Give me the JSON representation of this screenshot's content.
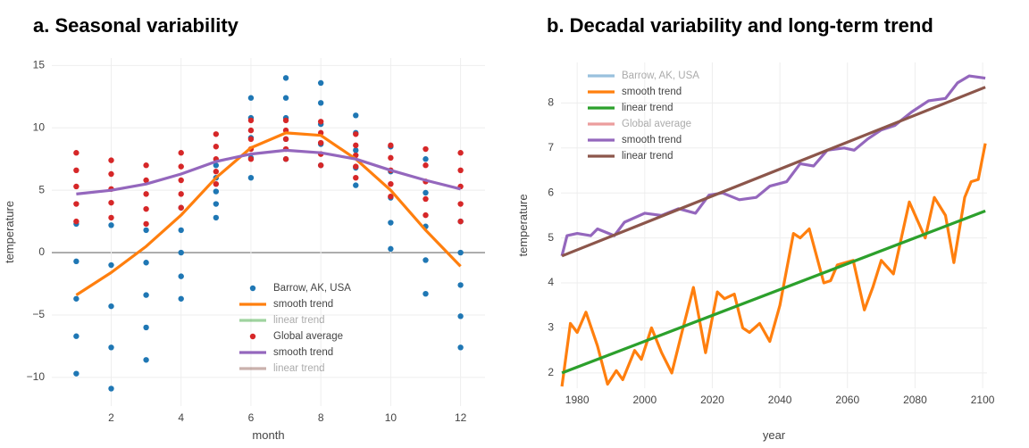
{
  "chart_data": [
    {
      "type": "scatter",
      "title": "a.  Seasonal variability",
      "x_label": "month",
      "y_label": "temperature",
      "xlim": [
        0.3,
        12.7
      ],
      "ylim": [
        -12.3,
        15.6
      ],
      "xticks": [
        2,
        4,
        6,
        8,
        10,
        12
      ],
      "yticks": [
        {
          "value": -10,
          "label": "−10"
        },
        {
          "value": -5,
          "label": "−5"
        },
        0,
        5,
        10,
        15
      ],
      "grid": true,
      "legend": "lower right",
      "series": [
        {
          "name": "Barrow, AK, USA",
          "color": "#1f77b4",
          "mode": "markers",
          "x": [
            1,
            1,
            1,
            1,
            1,
            2,
            2,
            2,
            2,
            2,
            3,
            3,
            3,
            3,
            3,
            4,
            4,
            4,
            4,
            4,
            5,
            5,
            5,
            5,
            5,
            6,
            6,
            6,
            6,
            6,
            7,
            7,
            7,
            7,
            7,
            8,
            8,
            8,
            8,
            8,
            9,
            9,
            9,
            9,
            9,
            10,
            10,
            10,
            10,
            10,
            11,
            11,
            11,
            11,
            11,
            12,
            12,
            12,
            12,
            12
          ],
          "values": [
            -9.7,
            -6.7,
            -3.7,
            -0.7,
            2.3,
            -10.9,
            -7.6,
            -4.3,
            -1.0,
            2.2,
            -8.6,
            -6.0,
            -3.4,
            -0.8,
            1.8,
            -3.7,
            -1.9,
            0.0,
            1.8,
            3.6,
            2.8,
            3.9,
            4.9,
            6.0,
            7.0,
            6.0,
            7.6,
            9.2,
            10.8,
            12.4,
            7.5,
            9.1,
            10.8,
            12.4,
            14.0,
            7.0,
            8.7,
            10.3,
            12.0,
            13.6,
            5.4,
            6.8,
            8.2,
            9.6,
            11.0,
            0.3,
            2.4,
            4.4,
            6.5,
            8.5,
            -3.3,
            -0.6,
            2.1,
            4.8,
            7.5,
            -7.6,
            -5.1,
            -2.6,
            0.0,
            2.5
          ]
        },
        {
          "name": "smooth trend",
          "color": "#ff7f0e",
          "mode": "lines",
          "x": [
            1,
            2,
            3,
            4,
            5,
            6,
            7,
            8,
            9,
            10,
            11,
            12
          ],
          "values": [
            -3.4,
            -1.6,
            0.5,
            3.0,
            6.0,
            8.4,
            9.6,
            9.4,
            7.5,
            5.0,
            1.8,
            -1.1
          ]
        },
        {
          "name": "linear trend",
          "color": "#2ca02c",
          "mode": "lines",
          "visible": false
        },
        {
          "name": "Global average",
          "color": "#d62728",
          "mode": "markers",
          "x": [
            1,
            1,
            1,
            1,
            1,
            2,
            2,
            2,
            2,
            2,
            3,
            3,
            3,
            3,
            3,
            4,
            4,
            4,
            4,
            4,
            5,
            5,
            5,
            5,
            5,
            6,
            6,
            6,
            6,
            6,
            7,
            7,
            7,
            7,
            7,
            8,
            8,
            8,
            8,
            8,
            9,
            9,
            9,
            9,
            9,
            10,
            10,
            10,
            10,
            10,
            11,
            11,
            11,
            11,
            11,
            12,
            12,
            12,
            12,
            12
          ],
          "values": [
            2.5,
            3.9,
            5.3,
            6.6,
            8.0,
            2.8,
            4.0,
            5.1,
            6.3,
            7.4,
            2.3,
            3.5,
            4.7,
            5.8,
            7.0,
            3.6,
            4.7,
            5.8,
            6.9,
            8.0,
            5.5,
            6.5,
            7.5,
            8.5,
            9.5,
            7.5,
            8.3,
            9.1,
            9.8,
            10.6,
            7.5,
            8.3,
            9.1,
            9.8,
            10.6,
            7.0,
            7.9,
            8.8,
            9.6,
            10.5,
            6.0,
            6.9,
            7.8,
            8.6,
            9.5,
            4.5,
            5.5,
            6.6,
            7.6,
            8.6,
            3.0,
            4.3,
            5.7,
            7.0,
            8.3,
            2.5,
            3.9,
            5.3,
            6.6,
            8.0
          ]
        },
        {
          "name": "smooth trend",
          "color": "#9467bd",
          "mode": "lines",
          "x": [
            1,
            2,
            3,
            4,
            5,
            6,
            7,
            8,
            9,
            10,
            11,
            12
          ],
          "values": [
            4.7,
            5.0,
            5.5,
            6.3,
            7.3,
            7.9,
            8.2,
            8.0,
            7.5,
            6.6,
            5.8,
            5.1
          ]
        },
        {
          "name": "linear trend",
          "color": "#8c564b",
          "mode": "lines",
          "visible": false
        }
      ]
    },
    {
      "type": "line",
      "title": "b.  Decadal variability and long-term trend",
      "x_label": "year",
      "y_label": "temperature",
      "xlim": [
        1975.2,
        2101.3
      ],
      "ylim": [
        1.66,
        8.9
      ],
      "xticks": [
        1980,
        2000,
        2020,
        2040,
        2060,
        2080,
        2100
      ],
      "yticks": [
        2,
        3,
        4,
        5,
        6,
        7,
        8
      ],
      "grid": true,
      "legend": "upper left",
      "series": [
        {
          "name": "Barrow, AK, USA",
          "color": "#1f77b4",
          "mode": "lines",
          "visible": false
        },
        {
          "name": "smooth trend",
          "color": "#ff7f0e",
          "mode": "lines",
          "x": [
            1975.5,
            1978,
            1980,
            1982.6,
            1986,
            1989,
            1991.6,
            1993.5,
            1997,
            1999,
            2002,
            2005,
            2008,
            2011,
            2014.4,
            2018,
            2021.5,
            2023.6,
            2026.5,
            2029,
            2031,
            2034,
            2037,
            2040,
            2044,
            2046,
            2048.7,
            2053,
            2055,
            2057,
            2061.7,
            2065,
            2067.5,
            2070,
            2073.6,
            2078.3,
            2083,
            2085.7,
            2089,
            2091.5,
            2094.7,
            2096.6,
            2098.7,
            2100.8
          ],
          "values": [
            1.7,
            3.1,
            2.9,
            3.35,
            2.6,
            1.75,
            2.05,
            1.85,
            2.5,
            2.3,
            3.0,
            2.45,
            2.0,
            2.9,
            3.9,
            2.45,
            3.8,
            3.65,
            3.75,
            3.0,
            2.9,
            3.1,
            2.7,
            3.5,
            5.1,
            5.0,
            5.2,
            4.0,
            4.05,
            4.4,
            4.5,
            3.4,
            3.9,
            4.5,
            4.2,
            5.8,
            5.0,
            5.9,
            5.5,
            4.45,
            5.9,
            6.25,
            6.3,
            7.1
          ]
        },
        {
          "name": "linear trend",
          "color": "#2ca02c",
          "mode": "lines",
          "x": [
            1975.5,
            2100.8
          ],
          "values": [
            2.0,
            5.6
          ]
        },
        {
          "name": "Global average",
          "color": "#d62728",
          "mode": "lines",
          "visible": false
        },
        {
          "name": "smooth trend",
          "color": "#9467bd",
          "mode": "lines",
          "x": [
            1975.5,
            1977,
            1980,
            1984,
            1986,
            1991,
            1994,
            2000,
            2005,
            2010,
            2015,
            2019,
            2023,
            2028,
            2033,
            2037,
            2042,
            2046,
            2050,
            2054,
            2059,
            2062,
            2066,
            2070,
            2074,
            2079,
            2084,
            2089,
            2092.6,
            2096,
            2100.8
          ],
          "values": [
            4.6,
            5.05,
            5.1,
            5.05,
            5.2,
            5.05,
            5.35,
            5.55,
            5.5,
            5.65,
            5.55,
            5.95,
            6.0,
            5.85,
            5.9,
            6.15,
            6.25,
            6.65,
            6.6,
            6.95,
            7.0,
            6.95,
            7.2,
            7.4,
            7.5,
            7.8,
            8.05,
            8.1,
            8.45,
            8.6,
            8.55
          ]
        },
        {
          "name": "linear trend",
          "color": "#8c564b",
          "mode": "lines",
          "x": [
            1975.5,
            2100.8
          ],
          "values": [
            4.6,
            8.35
          ]
        }
      ]
    }
  ]
}
